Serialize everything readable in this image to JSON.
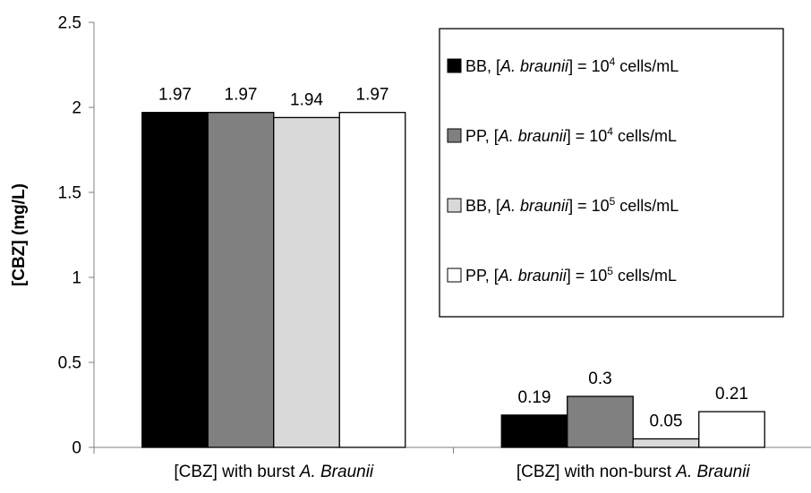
{
  "chart_data": {
    "type": "bar",
    "ylabel": "[CBZ] (mg/L)",
    "ylim": [
      0,
      2.5
    ],
    "yticks": [
      "0",
      "0.5",
      "1",
      "1.5",
      "2",
      "2.5"
    ],
    "categories": [
      {
        "prefix": "[CBZ] with burst ",
        "italic": "A. Braunii"
      },
      {
        "prefix": "[CBZ] with non-burst ",
        "italic": "A. Braunii"
      }
    ],
    "series": [
      {
        "name": "BB, [A. braunii] = 10^4 cells/mL",
        "legend": {
          "pre": "BB, [",
          "it": "A. braunii",
          "mid": "] = 10",
          "sup": "4",
          "post": " cells/mL"
        },
        "color": "#000000",
        "values": [
          1.97,
          0.19
        ],
        "labels": [
          "1.97",
          "0.19"
        ]
      },
      {
        "name": "PP, [A. braunii] = 10^4 cells/mL",
        "legend": {
          "pre": "PP, [",
          "it": "A. braunii",
          "mid": "] = 10",
          "sup": "4",
          "post": " cells/mL"
        },
        "color": "#808080",
        "values": [
          1.97,
          0.3
        ],
        "labels": [
          "1.97",
          "0.3"
        ]
      },
      {
        "name": "BB, [A. braunii] = 10^5 cells/mL",
        "legend": {
          "pre": "BB, [",
          "it": "A. braunii",
          "mid": "] = 10",
          "sup": "5",
          "post": " cells/mL"
        },
        "color": "#d9d9d9",
        "values": [
          1.94,
          0.05
        ],
        "labels": [
          "1.94",
          "0.05"
        ]
      },
      {
        "name": "PP, [A. braunii] = 10^5 cells/mL",
        "legend": {
          "pre": "PP, [",
          "it": "A. braunii",
          "mid": "] = 10",
          "sup": "5",
          "post": " cells/mL"
        },
        "color": "#ffffff",
        "values": [
          1.97,
          0.21
        ],
        "labels": [
          "1.97",
          "0.21"
        ]
      }
    ],
    "legend_position": "top-right",
    "grid": false
  }
}
